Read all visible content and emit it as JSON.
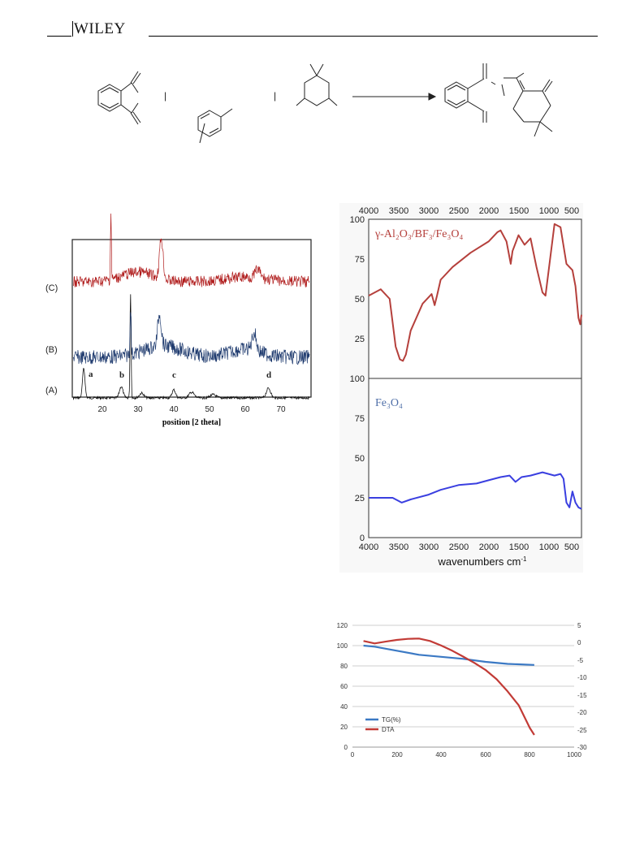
{
  "header": {
    "publisher": "WILEY"
  },
  "scheme": {
    "plus_1": "|",
    "plus_2": "|"
  },
  "xrd": {
    "trace_labels": [
      "(C)",
      "(B)",
      "(A)"
    ],
    "peak_labels": [
      "a",
      "b",
      "c",
      "d"
    ],
    "x_ticks": [
      "20",
      "30",
      "40",
      "50",
      "60",
      "70"
    ],
    "xlabel": "position [2 theta]"
  },
  "ftir": {
    "top_ticks": [
      "4000",
      "3500",
      "3000",
      "2500",
      "2000",
      "1500",
      "1000",
      "500"
    ],
    "bottom_ticks": [
      "4000",
      "3500",
      "3000",
      "2500",
      "2000",
      "1500",
      "1000",
      "500"
    ],
    "upper_y_ticks": [
      "100",
      "75",
      "50",
      "25",
      "100"
    ],
    "lower_y_ticks": [
      "75",
      "50",
      "25",
      "0"
    ],
    "label_upper": "γ-Al₂O₃/BF₃/Fe₃O₄",
    "label_lower": "Fe₃O₄",
    "xlabel": "wavenumbers cm",
    "xlabel_sup": "-1",
    "colors": {
      "upper": "#b5403c",
      "lower": "#3a3fe0"
    }
  },
  "tga": {
    "left_ticks": [
      "120",
      "100",
      "80",
      "60",
      "40",
      "20",
      "0"
    ],
    "right_ticks": [
      "5",
      "0",
      "-5",
      "-10",
      "-15",
      "-20",
      "-25",
      "-30"
    ],
    "x_ticks": [
      "0",
      "200",
      "400",
      "600",
      "800",
      "1000"
    ],
    "legend": [
      "TG(%)",
      "DTA"
    ],
    "colors": {
      "tg": "#3b79c4",
      "dta": "#c23b36"
    }
  },
  "chart_data": [
    {
      "type": "line",
      "xlabel": "wavenumbers cm-1",
      "ylabel": "",
      "xlim": [
        4000,
        450
      ],
      "ylim": [
        0,
        100
      ],
      "series": [
        {
          "name": "γ-Al₂O₃/BF₃/Fe₃O₄",
          "x": [
            4000,
            3800,
            3650,
            3550,
            3480,
            3430,
            3380,
            3300,
            3100,
            2950,
            2900,
            2860,
            2800,
            2600,
            2300,
            2000,
            1850,
            1800,
            1700,
            1630,
            1600,
            1500,
            1400,
            1300,
            1200,
            1100,
            1050,
            950,
            900,
            800,
            700,
            600,
            550,
            500,
            470,
            450
          ],
          "y": [
            52,
            56,
            50,
            20,
            12,
            11,
            15,
            30,
            47,
            53,
            46,
            52,
            62,
            70,
            79,
            86,
            92,
            93,
            86,
            72,
            80,
            90,
            84,
            88,
            70,
            54,
            52,
            82,
            97,
            95,
            72,
            68,
            58,
            38,
            34,
            40
          ]
        },
        {
          "name": "Fe₃O₄",
          "x": [
            4000,
            3800,
            3600,
            3450,
            3300,
            3000,
            2800,
            2500,
            2200,
            2000,
            1800,
            1650,
            1550,
            1450,
            1300,
            1200,
            1100,
            1000,
            900,
            800,
            750,
            700,
            650,
            600,
            550,
            500,
            450
          ],
          "y": [
            25,
            25,
            25,
            22,
            24,
            27,
            30,
            33,
            34,
            36,
            38,
            39,
            35,
            38,
            39,
            40,
            41,
            40,
            39,
            40,
            37,
            22,
            19,
            29,
            22,
            19,
            18
          ]
        }
      ]
    },
    {
      "type": "line",
      "xlim": [
        0,
        1000
      ],
      "ylim": [
        0,
        120
      ],
      "y2lim": [
        -30,
        5
      ],
      "series": [
        {
          "name": "TG(%)",
          "x": [
            50,
            100,
            150,
            200,
            300,
            400,
            500,
            600,
            700,
            820
          ],
          "y": [
            100,
            99,
            97,
            95,
            91,
            89,
            87,
            84,
            82,
            81
          ]
        },
        {
          "name": "DTA",
          "axis": "right",
          "x": [
            50,
            100,
            150,
            200,
            250,
            300,
            350,
            400,
            450,
            500,
            550,
            600,
            650,
            700,
            750,
            800,
            820
          ],
          "y": [
            0.5,
            -0.2,
            0.3,
            0.8,
            1.1,
            1.2,
            0.5,
            -0.8,
            -2.3,
            -4,
            -5.8,
            -7.8,
            -10.5,
            -14,
            -18,
            -24.5,
            -26.5
          ]
        }
      ]
    }
  ]
}
